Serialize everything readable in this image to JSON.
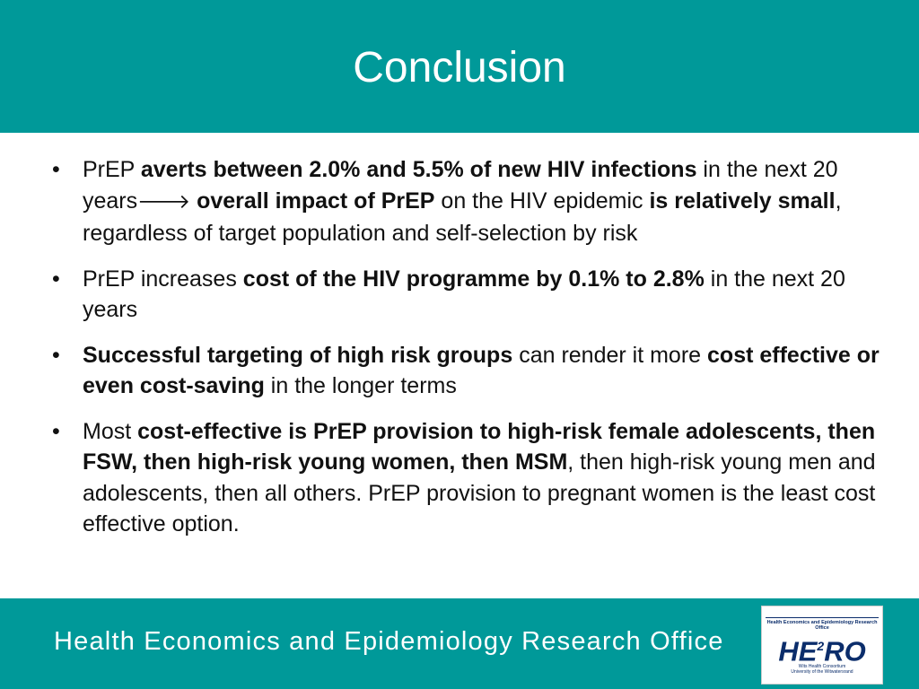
{
  "title": "Conclusion",
  "bullets": [
    {
      "bullet": "•",
      "t1": "PrEP ",
      "b1": "averts between 2.0% and 5.5% of new HIV infections",
      "t2": " in the next 20 years",
      "arrow": "🡒",
      "t3": " ",
      "b2": "overall impact of PrEP",
      "t4": " on the HIV epidemic ",
      "b3": "is relatively small",
      "t5": ", regardless of target population and self-selection by risk"
    },
    {
      "bullet": "•",
      "t1": "PrEP increases ",
      "b1": "cost of the HIV programme by 0.1% to 2.8%",
      "t2": " in the next 20 years"
    },
    {
      "bullet": "•",
      "b1": "Successful targeting of high risk groups",
      "t1": " can render it more ",
      "b2": "cost effective or even cost-saving",
      "t2": " in the longer terms"
    },
    {
      "bullet": "•",
      "t1": "Most ",
      "b1": "cost-effective is PrEP provision to high-risk female adolescents, then FSW, then high-risk young women, then MSM",
      "t2": ", then high-risk young men and adolescents, then all others. PrEP provision to pregnant women is the least cost effective option."
    }
  ],
  "footer": {
    "text": "Health Economics and Epidemiology Research Office"
  },
  "logo": {
    "top": "Health Economics and Epidemiology Research Office",
    "main_a": "HE",
    "main_sup": "2",
    "main_b": "RO",
    "bottom_1": "Wits Health Consortium",
    "bottom_2": "University of the Witwatersrand"
  },
  "colors": {
    "teal": "#009999",
    "logo_navy": "#0b2d6b"
  }
}
